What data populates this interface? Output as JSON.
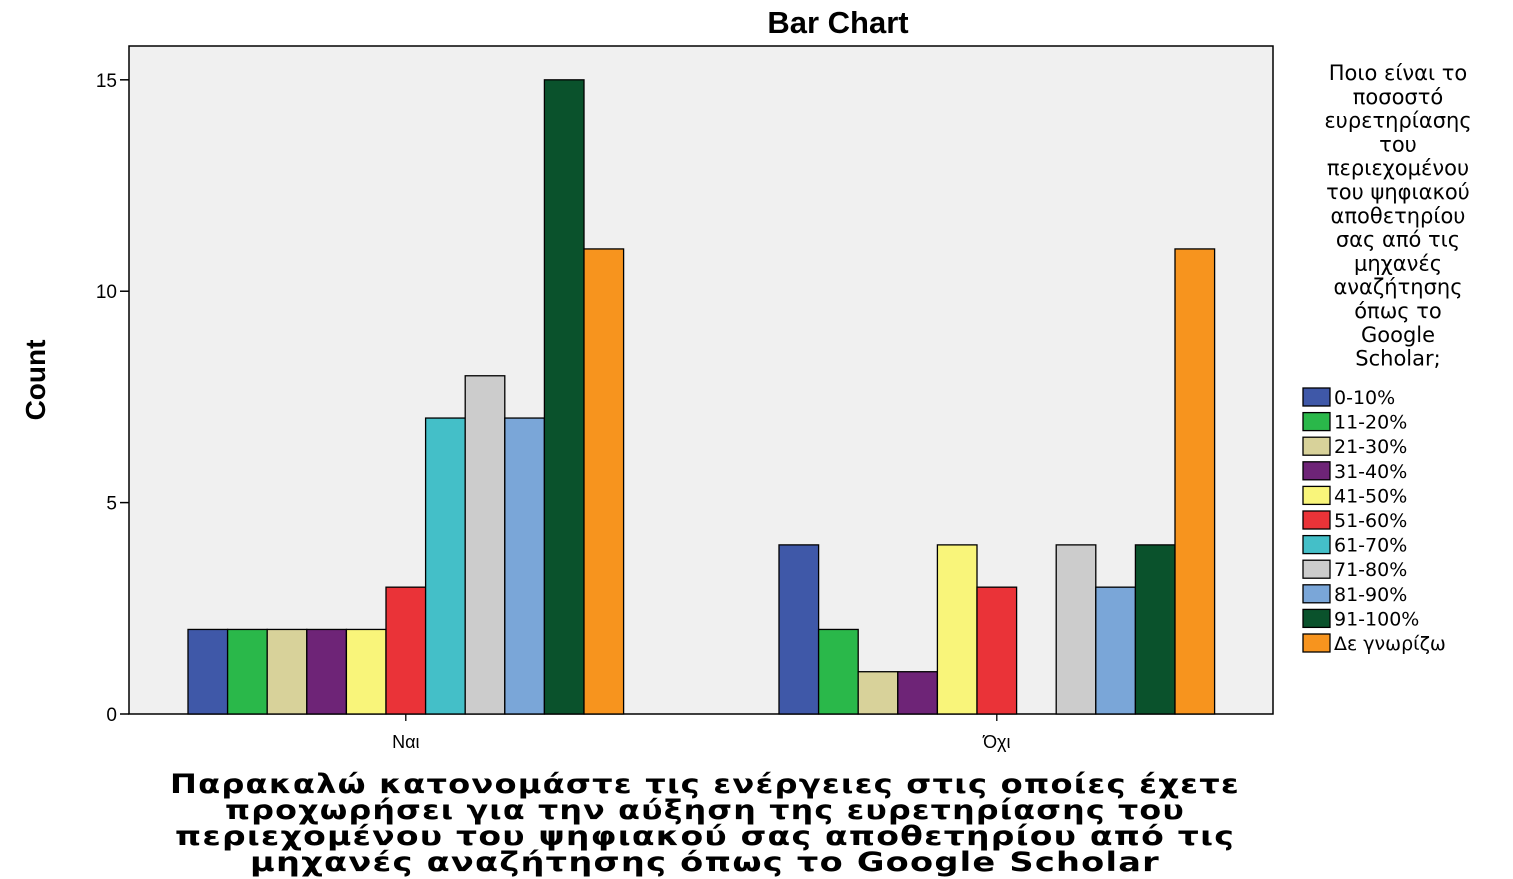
{
  "chart_data": {
    "type": "bar",
    "title": "Bar Chart",
    "ylabel": "Count",
    "xlabel_lines": [
      "Παρακαλώ κατονομάστε τις ενέργειες στις οποίες έχετε",
      "προχωρήσει για την αύξηση της ευρετηρίασης του",
      "περιεχομένου του ψηφιακού σας αποθετηρίου από τις",
      "μηχανές αναζήτησης όπως το Google Scholar"
    ],
    "categories": [
      "Ναι",
      "Όχι"
    ],
    "ylim": [
      0,
      15.8
    ],
    "yticks": [
      0,
      5,
      10,
      15
    ],
    "grid": false,
    "legend_position": "right",
    "legend_title_lines": [
      "Ποιο είναι το",
      "ποσοστό",
      "ευρετηρίασης",
      "του",
      "περιεχομένου",
      "του ψηφιακού",
      "αποθετηρίου",
      "σας από τις",
      "μηχανές",
      "αναζήτησης",
      "όπως το",
      "Google",
      "Scholar;"
    ],
    "series": [
      {
        "name": "0-10%",
        "color": "#3f58a8",
        "values": [
          2,
          4
        ]
      },
      {
        "name": "11-20%",
        "color": "#2ab84a",
        "values": [
          2,
          2
        ]
      },
      {
        "name": "21-30%",
        "color": "#d8d29a",
        "values": [
          2,
          1
        ]
      },
      {
        "name": "31-40%",
        "color": "#6e2477",
        "values": [
          2,
          1
        ]
      },
      {
        "name": "41-50%",
        "color": "#f9f57a",
        "values": [
          2,
          4
        ]
      },
      {
        "name": "51-60%",
        "color": "#ea3338",
        "values": [
          3,
          3
        ]
      },
      {
        "name": "61-70%",
        "color": "#44bfc8",
        "values": [
          7,
          0
        ]
      },
      {
        "name": "71-80%",
        "color": "#cccccc",
        "values": [
          8,
          4
        ]
      },
      {
        "name": "81-90%",
        "color": "#7aa6d8",
        "values": [
          7,
          3
        ]
      },
      {
        "name": "91-100%",
        "color": "#0a522c",
        "values": [
          15,
          4
        ]
      },
      {
        "name": "Δε γνωρίζω",
        "color": "#f7941e",
        "values": [
          11,
          11
        ]
      }
    ]
  }
}
